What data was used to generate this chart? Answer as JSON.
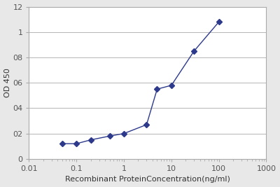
{
  "x": [
    0.05,
    0.1,
    0.2,
    0.5,
    1.0,
    3.0,
    5.0,
    10.0,
    30.0,
    100.0
  ],
  "y": [
    0.12,
    0.12,
    0.15,
    0.18,
    0.2,
    0.27,
    0.55,
    0.58,
    0.85,
    1.08
  ],
  "xlim": [
    0.01,
    1000
  ],
  "ylim": [
    0,
    1.2
  ],
  "ytick_vals": [
    0,
    0.2,
    0.4,
    0.6,
    0.8,
    1.0,
    1.2
  ],
  "ytick_labels": [
    "0",
    "02",
    "04",
    "06",
    "08",
    "1",
    "12"
  ],
  "xtick_vals": [
    0.01,
    0.1,
    1,
    10,
    100,
    1000
  ],
  "xtick_labels": [
    "0.01",
    "0.1",
    "1",
    "10",
    "100",
    "1000"
  ],
  "xlabel": "Recombinant ProteinConcentration(ng/ml)",
  "ylabel": "OD 450",
  "line_color": "#2d3a8c",
  "marker": "D",
  "marker_size": 4,
  "background_color": "#e8e8e8",
  "plot_bg_color": "#ffffff",
  "grid_color": "#aaaaaa",
  "xlabel_fontsize": 8,
  "ylabel_fontsize": 8,
  "tick_fontsize": 8,
  "tick_color": "#555555",
  "xlabel_color": "#333333",
  "ylabel_color": "#333333",
  "linewidth": 1.0
}
